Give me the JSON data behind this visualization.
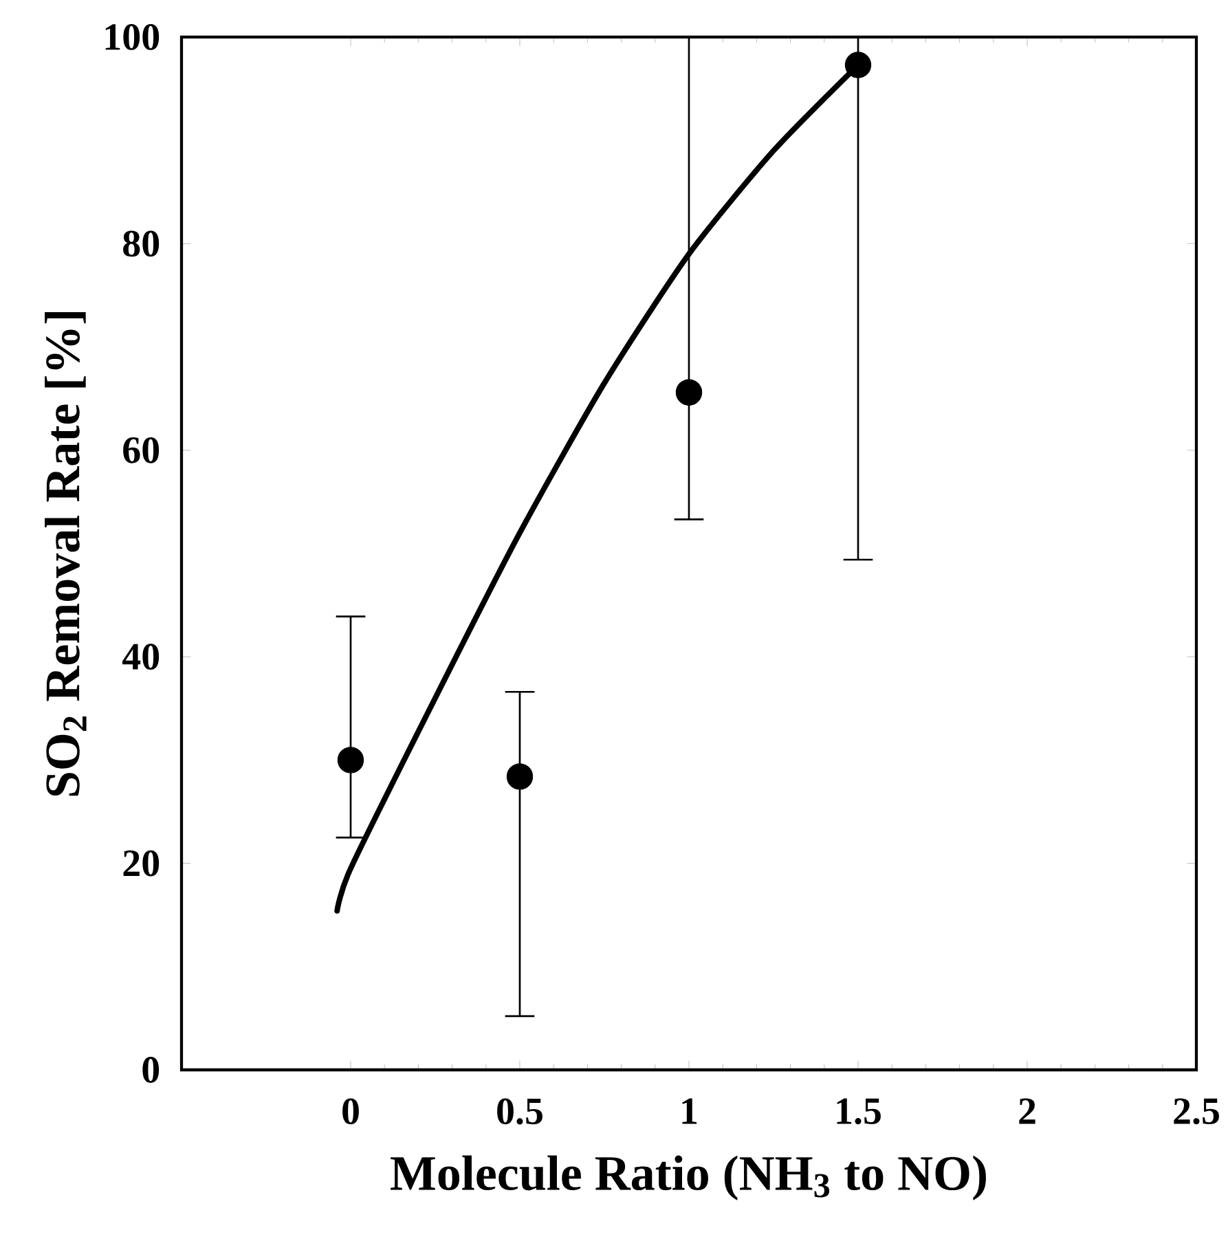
{
  "chart_data": {
    "type": "scatter",
    "xlabel": "Molecule Ratio (NH$_{3}$ to NO)",
    "ylabel": "SO$_{2}$ Removal Rate [%]",
    "xlim": [
      -0.5,
      2.5
    ],
    "ylim": [
      0,
      100
    ],
    "xticks": [
      0,
      0.5,
      1,
      1.5,
      2,
      2.5
    ],
    "yticks": [
      0,
      20,
      40,
      60,
      80,
      100
    ],
    "marker": "circle",
    "series": [
      {
        "color": "#000000",
        "x": [
          0,
          0.5,
          1,
          1.5
        ],
        "values": [
          30,
          28.4,
          65.6,
          97.3
        ],
        "errors": [
          [
            22.5,
            43.9
          ],
          [
            5.2,
            36.6
          ],
          [
            53.3,
            100
          ],
          [
            49.4,
            100
          ]
        ]
      },
      {
        "type": "line",
        "color": "#000000",
        "marker": "none",
        "line_style": "solid",
        "x": [
          -0.04,
          0,
          0.25,
          0.5,
          0.75,
          1,
          1.25,
          1.5
        ],
        "values": [
          15.4,
          19.5,
          36,
          52,
          66.5,
          79,
          89,
          97.3
        ]
      }
    ]
  }
}
